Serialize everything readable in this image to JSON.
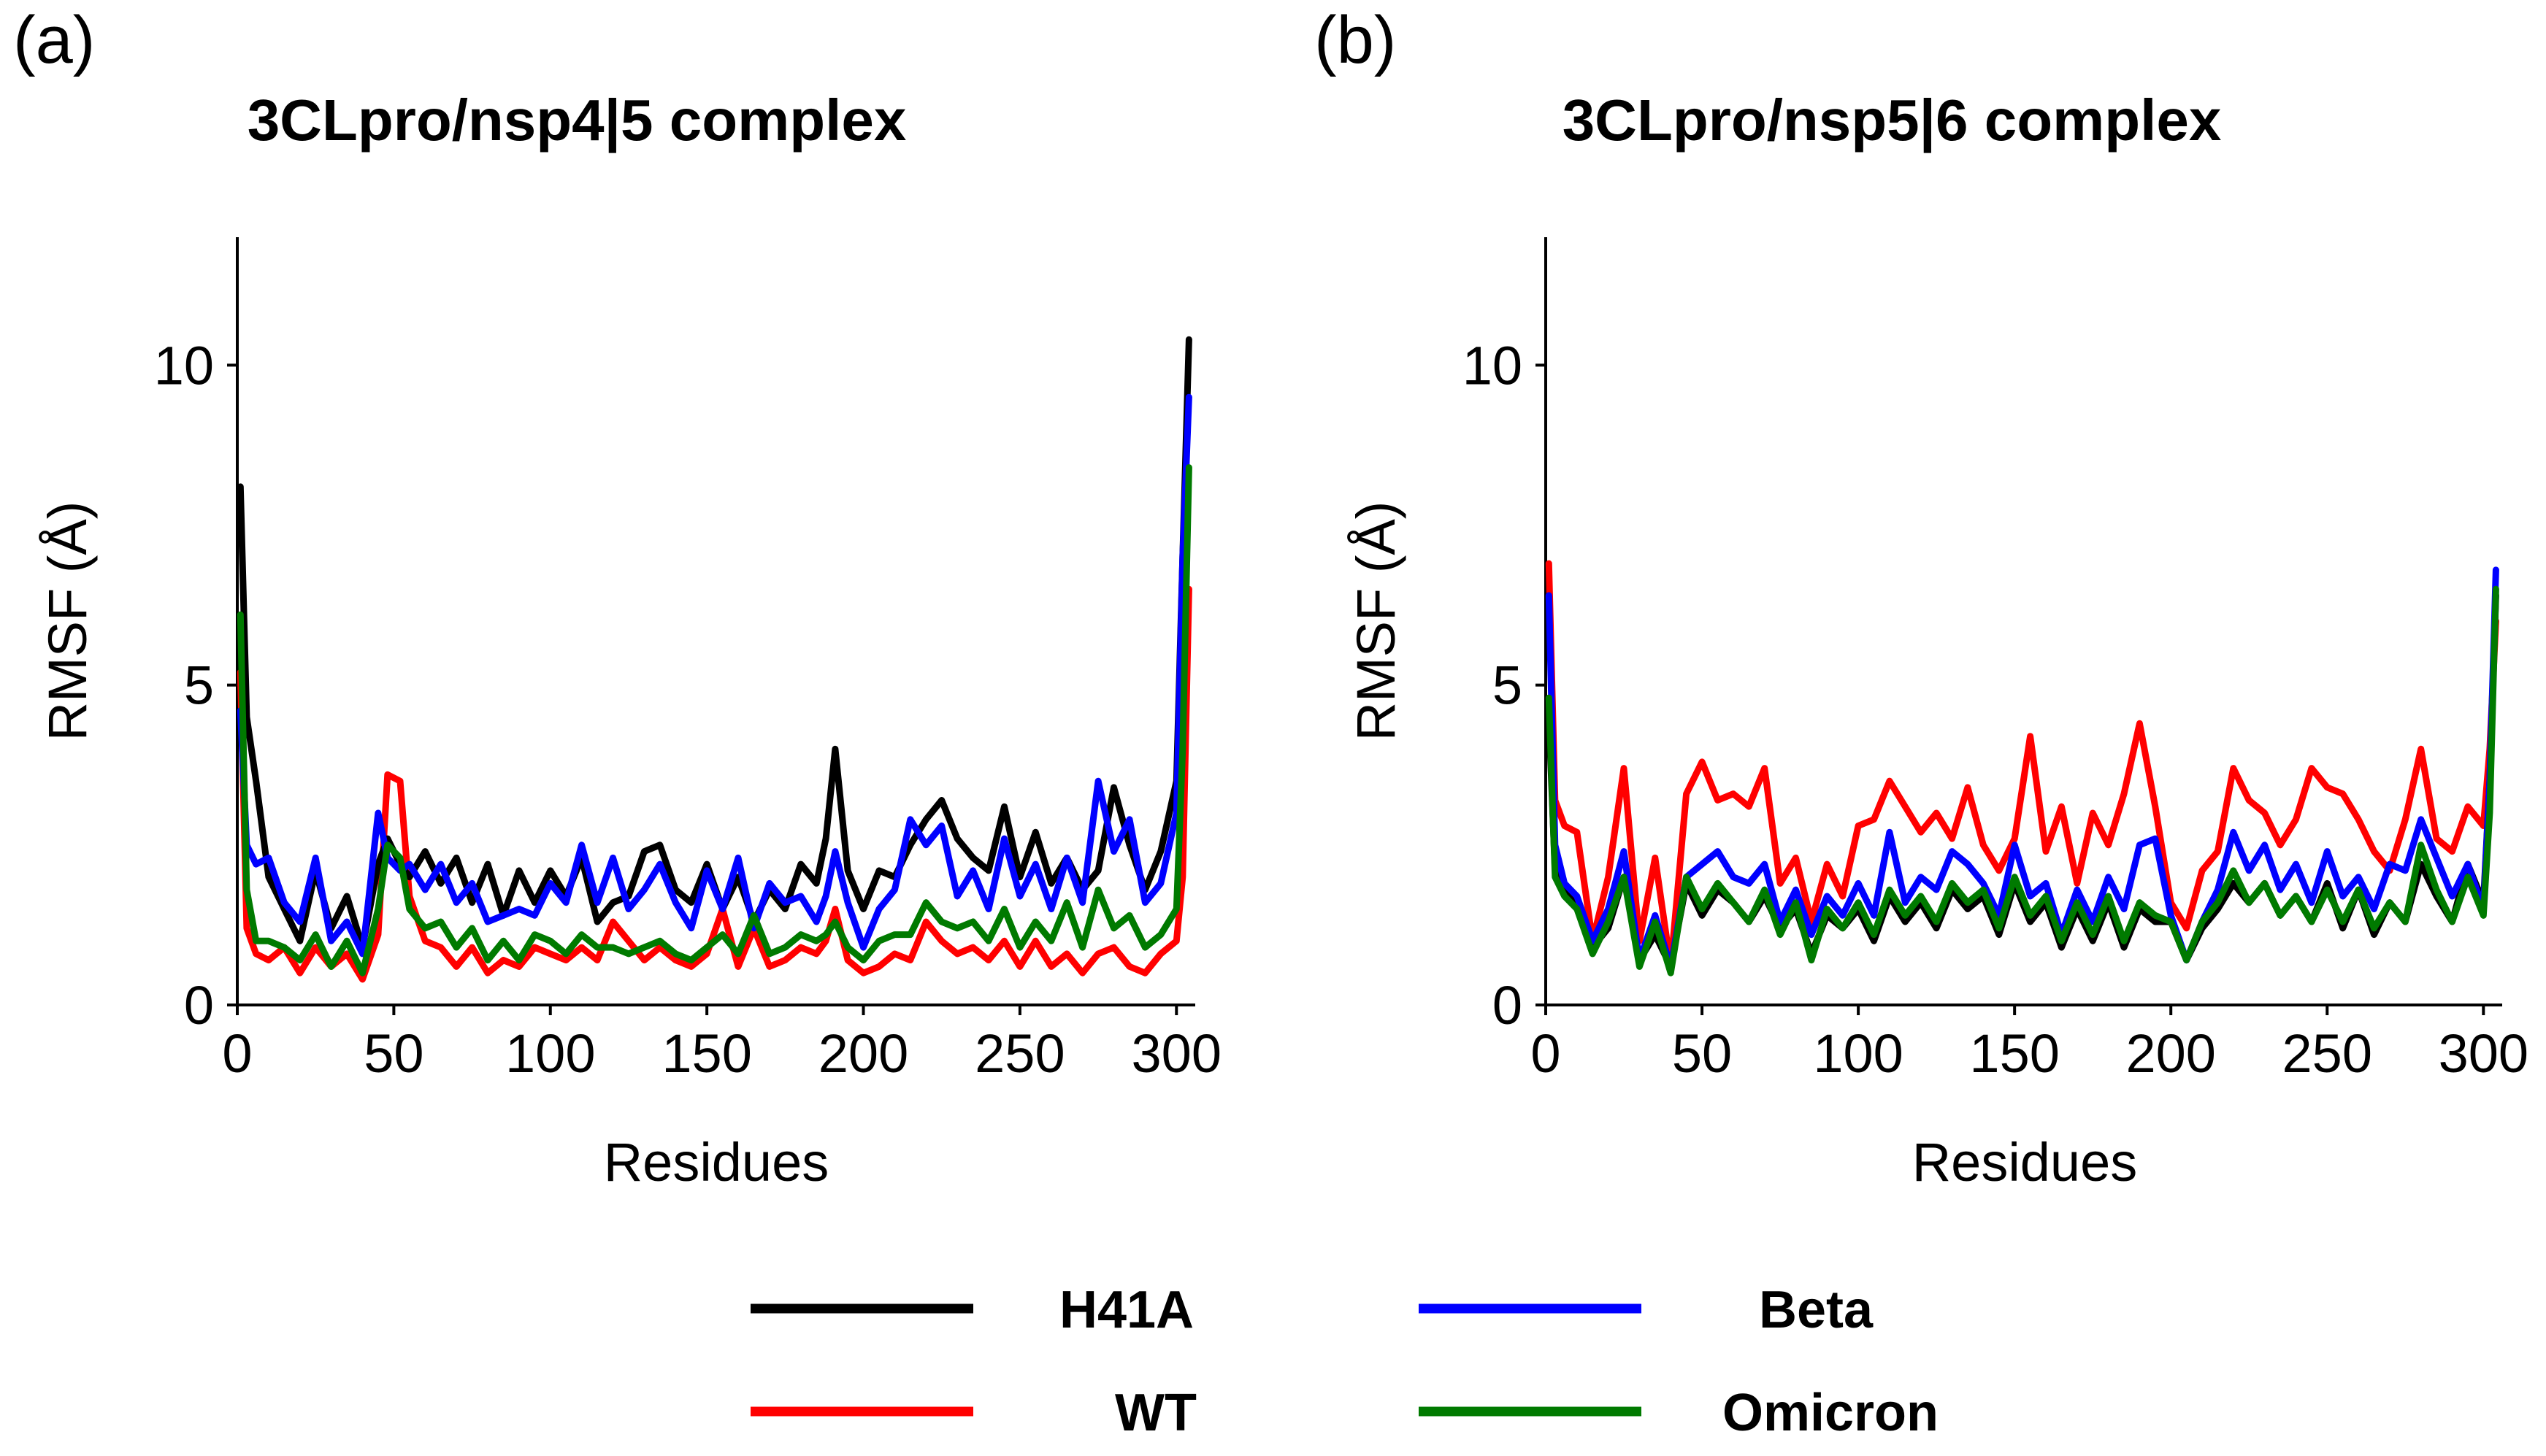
{
  "chart_data": [
    {
      "type": "line",
      "panel_label": "(a)",
      "title": "3CLpro/nsp4|5 complex",
      "xlabel": "Residues",
      "ylabel": "RMSF (Å)",
      "xlim": [
        0,
        306
      ],
      "ylim": [
        0,
        12
      ],
      "xticks": [
        0,
        50,
        100,
        150,
        200,
        250,
        300
      ],
      "yticks": [
        0,
        5,
        10
      ],
      "grid": false,
      "series": [
        {
          "name": "H41A",
          "color": "#000000",
          "x": [
            1,
            3,
            6,
            10,
            15,
            20,
            25,
            30,
            35,
            40,
            45,
            48,
            52,
            55,
            60,
            65,
            70,
            75,
            80,
            85,
            90,
            95,
            100,
            105,
            110,
            115,
            120,
            125,
            130,
            135,
            140,
            145,
            150,
            155,
            160,
            165,
            170,
            175,
            180,
            185,
            188,
            191,
            195,
            200,
            205,
            210,
            215,
            220,
            225,
            230,
            235,
            240,
            245,
            250,
            255,
            260,
            265,
            270,
            275,
            280,
            285,
            290,
            295,
            300,
            302,
            304
          ],
          "y": [
            8.1,
            4.5,
            3.5,
            2.0,
            1.5,
            1.0,
            2.1,
            1.2,
            1.7,
            0.9,
            2.2,
            2.6,
            2.2,
            2.0,
            2.4,
            1.9,
            2.3,
            1.6,
            2.2,
            1.4,
            2.1,
            1.6,
            2.1,
            1.7,
            2.3,
            1.3,
            1.6,
            1.7,
            2.4,
            2.5,
            1.8,
            1.6,
            2.2,
            1.5,
            2.0,
            1.3,
            1.8,
            1.5,
            2.2,
            1.9,
            2.6,
            4.0,
            2.1,
            1.5,
            2.1,
            2.0,
            2.5,
            2.9,
            3.2,
            2.6,
            2.3,
            2.1,
            3.1,
            2.0,
            2.7,
            1.9,
            2.3,
            1.8,
            2.1,
            3.4,
            2.5,
            1.8,
            2.4,
            3.5,
            7.0,
            10.4
          ]
        },
        {
          "name": "WT",
          "color": "#ff0000",
          "x": [
            1,
            3,
            6,
            10,
            15,
            20,
            25,
            30,
            35,
            40,
            45,
            48,
            52,
            55,
            60,
            65,
            70,
            75,
            80,
            85,
            90,
            95,
            100,
            105,
            110,
            115,
            120,
            125,
            130,
            135,
            140,
            145,
            150,
            155,
            160,
            165,
            170,
            175,
            180,
            185,
            188,
            191,
            195,
            200,
            205,
            210,
            215,
            220,
            225,
            230,
            235,
            240,
            245,
            250,
            255,
            260,
            265,
            270,
            275,
            280,
            285,
            290,
            295,
            300,
            302,
            304
          ],
          "y": [
            5.2,
            1.2,
            0.8,
            0.7,
            0.9,
            0.5,
            0.9,
            0.6,
            0.8,
            0.4,
            1.1,
            3.6,
            3.5,
            1.7,
            1.0,
            0.9,
            0.6,
            0.9,
            0.5,
            0.7,
            0.6,
            0.9,
            0.8,
            0.7,
            0.9,
            0.7,
            1.3,
            1.0,
            0.7,
            0.9,
            0.7,
            0.6,
            0.8,
            1.5,
            0.6,
            1.2,
            0.6,
            0.7,
            0.9,
            0.8,
            1.0,
            1.5,
            0.7,
            0.5,
            0.6,
            0.8,
            0.7,
            1.3,
            1.0,
            0.8,
            0.9,
            0.7,
            1.0,
            0.6,
            1.0,
            0.6,
            0.8,
            0.5,
            0.8,
            0.9,
            0.6,
            0.5,
            0.8,
            1.0,
            2.0,
            6.5
          ]
        },
        {
          "name": "Beta",
          "color": "#0000ff",
          "x": [
            1,
            3,
            6,
            10,
            15,
            20,
            25,
            30,
            35,
            40,
            45,
            48,
            52,
            55,
            60,
            65,
            70,
            75,
            80,
            85,
            90,
            95,
            100,
            105,
            110,
            115,
            120,
            125,
            130,
            135,
            140,
            145,
            150,
            155,
            160,
            165,
            170,
            175,
            180,
            185,
            188,
            191,
            195,
            200,
            205,
            210,
            215,
            220,
            225,
            230,
            235,
            240,
            245,
            250,
            255,
            260,
            265,
            270,
            275,
            280,
            285,
            290,
            295,
            300,
            302,
            304
          ],
          "y": [
            4.6,
            2.5,
            2.2,
            2.3,
            1.6,
            1.3,
            2.3,
            1.0,
            1.3,
            0.8,
            3.0,
            2.3,
            2.1,
            2.2,
            1.8,
            2.2,
            1.6,
            1.9,
            1.3,
            1.4,
            1.5,
            1.4,
            1.9,
            1.6,
            2.5,
            1.6,
            2.3,
            1.5,
            1.8,
            2.2,
            1.6,
            1.2,
            2.1,
            1.5,
            2.3,
            1.2,
            1.9,
            1.6,
            1.7,
            1.3,
            1.7,
            2.4,
            1.6,
            0.9,
            1.5,
            1.8,
            2.9,
            2.5,
            2.8,
            1.7,
            2.1,
            1.5,
            2.6,
            1.7,
            2.2,
            1.5,
            2.3,
            1.6,
            3.5,
            2.4,
            2.9,
            1.6,
            1.9,
            3.0,
            7.0,
            9.5
          ]
        },
        {
          "name": "Omicron",
          "color": "#007a00",
          "x": [
            1,
            3,
            6,
            10,
            15,
            20,
            25,
            30,
            35,
            40,
            45,
            48,
            52,
            55,
            60,
            65,
            70,
            75,
            80,
            85,
            90,
            95,
            100,
            105,
            110,
            115,
            120,
            125,
            130,
            135,
            140,
            145,
            150,
            155,
            160,
            165,
            170,
            175,
            180,
            185,
            188,
            191,
            195,
            200,
            205,
            210,
            215,
            220,
            225,
            230,
            235,
            240,
            245,
            250,
            255,
            260,
            265,
            270,
            275,
            280,
            285,
            290,
            295,
            300,
            302,
            304
          ],
          "y": [
            6.1,
            1.8,
            1.0,
            1.0,
            0.9,
            0.7,
            1.1,
            0.6,
            1.0,
            0.5,
            1.5,
            2.5,
            2.3,
            1.5,
            1.2,
            1.3,
            0.9,
            1.2,
            0.7,
            1.0,
            0.7,
            1.1,
            1.0,
            0.8,
            1.1,
            0.9,
            0.9,
            0.8,
            0.9,
            1.0,
            0.8,
            0.7,
            0.9,
            1.1,
            0.8,
            1.4,
            0.8,
            0.9,
            1.1,
            1.0,
            1.1,
            1.3,
            0.9,
            0.7,
            1.0,
            1.1,
            1.1,
            1.6,
            1.3,
            1.2,
            1.3,
            1.0,
            1.5,
            0.9,
            1.3,
            1.0,
            1.6,
            0.9,
            1.8,
            1.2,
            1.4,
            0.9,
            1.1,
            1.5,
            4.0,
            8.4
          ]
        }
      ]
    },
    {
      "type": "line",
      "panel_label": "(b)",
      "title": "3CLpro/nsp5|6 complex",
      "xlabel": "Residues",
      "ylabel": "RMSF (Å)",
      "xlim": [
        0,
        306
      ],
      "ylim": [
        0,
        12
      ],
      "xticks": [
        0,
        50,
        100,
        150,
        200,
        250,
        300
      ],
      "yticks": [
        0,
        5,
        10
      ],
      "grid": false,
      "series": [
        {
          "name": "H41A",
          "color": "#000000",
          "x": [
            1,
            3,
            6,
            10,
            15,
            20,
            25,
            30,
            35,
            40,
            45,
            50,
            55,
            60,
            65,
            70,
            75,
            80,
            85,
            90,
            95,
            100,
            105,
            110,
            115,
            120,
            125,
            130,
            135,
            140,
            145,
            150,
            155,
            160,
            165,
            170,
            175,
            180,
            185,
            190,
            195,
            200,
            205,
            210,
            215,
            220,
            225,
            230,
            235,
            240,
            245,
            250,
            255,
            260,
            265,
            270,
            275,
            280,
            285,
            290,
            295,
            300,
            302,
            304
          ],
          "y": [
            4.5,
            2.1,
            1.8,
            1.6,
            0.9,
            1.2,
            2.0,
            0.7,
            1.1,
            0.6,
            1.9,
            1.4,
            1.8,
            1.6,
            1.3,
            1.7,
            1.2,
            1.5,
            0.8,
            1.4,
            1.2,
            1.5,
            1.0,
            1.7,
            1.3,
            1.6,
            1.2,
            1.8,
            1.5,
            1.7,
            1.1,
            1.9,
            1.3,
            1.6,
            0.9,
            1.5,
            1.0,
            1.6,
            0.9,
            1.5,
            1.3,
            1.3,
            0.7,
            1.2,
            1.5,
            1.9,
            1.6,
            1.9,
            1.4,
            1.7,
            1.3,
            1.9,
            1.2,
            1.8,
            1.1,
            1.6,
            1.3,
            2.2,
            1.7,
            1.3,
            2.2,
            1.6,
            3.5,
            6.4
          ]
        },
        {
          "name": "WT",
          "color": "#ff0000",
          "x": [
            1,
            3,
            6,
            10,
            15,
            20,
            25,
            30,
            35,
            40,
            45,
            50,
            55,
            60,
            65,
            70,
            75,
            80,
            85,
            90,
            95,
            100,
            105,
            110,
            115,
            120,
            125,
            130,
            135,
            140,
            145,
            150,
            155,
            160,
            165,
            170,
            175,
            180,
            185,
            190,
            195,
            200,
            205,
            210,
            215,
            220,
            225,
            230,
            235,
            240,
            245,
            250,
            255,
            260,
            265,
            270,
            275,
            280,
            285,
            290,
            295,
            300,
            302,
            304
          ],
          "y": [
            6.9,
            3.2,
            2.8,
            2.7,
            1.0,
            2.0,
            3.7,
            1.0,
            2.3,
            0.6,
            3.3,
            3.8,
            3.2,
            3.3,
            3.1,
            3.7,
            1.9,
            2.3,
            1.3,
            2.2,
            1.7,
            2.8,
            2.9,
            3.5,
            3.1,
            2.7,
            3.0,
            2.6,
            3.4,
            2.5,
            2.1,
            2.6,
            4.2,
            2.4,
            3.1,
            1.9,
            3.0,
            2.5,
            3.3,
            4.4,
            3.1,
            1.6,
            1.2,
            2.1,
            2.4,
            3.7,
            3.2,
            3.0,
            2.5,
            2.9,
            3.7,
            3.4,
            3.3,
            2.9,
            2.4,
            2.1,
            2.9,
            4.0,
            2.6,
            2.4,
            3.1,
            2.8,
            4.0,
            6.0
          ]
        },
        {
          "name": "Beta",
          "color": "#0000ff",
          "x": [
            1,
            3,
            6,
            10,
            15,
            20,
            25,
            30,
            35,
            40,
            45,
            50,
            55,
            60,
            65,
            70,
            75,
            80,
            85,
            90,
            95,
            100,
            105,
            110,
            115,
            120,
            125,
            130,
            135,
            140,
            145,
            150,
            155,
            160,
            165,
            170,
            175,
            180,
            185,
            190,
            195,
            200,
            205,
            210,
            215,
            220,
            225,
            230,
            235,
            240,
            245,
            250,
            255,
            260,
            265,
            270,
            275,
            280,
            285,
            290,
            295,
            300,
            302,
            304
          ],
          "y": [
            6.4,
            2.5,
            1.9,
            1.7,
            1.0,
            1.5,
            2.4,
            0.7,
            1.4,
            0.6,
            2.0,
            2.2,
            2.4,
            2.0,
            1.9,
            2.2,
            1.3,
            1.8,
            1.1,
            1.7,
            1.4,
            1.9,
            1.4,
            2.7,
            1.6,
            2.0,
            1.8,
            2.4,
            2.2,
            1.9,
            1.4,
            2.5,
            1.7,
            1.9,
            1.1,
            1.8,
            1.3,
            2.0,
            1.5,
            2.5,
            2.6,
            1.4,
            0.7,
            1.3,
            1.8,
            2.7,
            2.1,
            2.5,
            1.8,
            2.2,
            1.6,
            2.4,
            1.7,
            2.0,
            1.5,
            2.2,
            2.1,
            2.9,
            2.3,
            1.7,
            2.2,
            1.5,
            3.5,
            6.8
          ]
        },
        {
          "name": "Omicron",
          "color": "#007a00",
          "x": [
            1,
            3,
            6,
            10,
            15,
            20,
            25,
            30,
            35,
            40,
            45,
            50,
            55,
            60,
            65,
            70,
            75,
            80,
            85,
            90,
            95,
            100,
            105,
            110,
            115,
            120,
            125,
            130,
            135,
            140,
            145,
            150,
            155,
            160,
            165,
            170,
            175,
            180,
            185,
            190,
            195,
            200,
            205,
            210,
            215,
            220,
            225,
            230,
            235,
            240,
            245,
            250,
            255,
            260,
            265,
            270,
            275,
            280,
            285,
            290,
            295,
            300,
            302,
            304
          ],
          "y": [
            4.8,
            2.0,
            1.7,
            1.5,
            0.8,
            1.3,
            2.0,
            0.6,
            1.3,
            0.5,
            2.0,
            1.5,
            1.9,
            1.6,
            1.3,
            1.8,
            1.1,
            1.6,
            0.7,
            1.5,
            1.2,
            1.6,
            1.1,
            1.8,
            1.4,
            1.7,
            1.3,
            1.9,
            1.6,
            1.8,
            1.2,
            2.0,
            1.4,
            1.7,
            1.0,
            1.6,
            1.1,
            1.7,
            1.0,
            1.6,
            1.4,
            1.3,
            0.7,
            1.3,
            1.6,
            2.1,
            1.6,
            1.9,
            1.4,
            1.7,
            1.3,
            1.8,
            1.3,
            1.8,
            1.2,
            1.6,
            1.3,
            2.5,
            1.8,
            1.3,
            2.0,
            1.4,
            3.0,
            6.5
          ]
        }
      ]
    }
  ],
  "legend": {
    "placement": "bottom-center",
    "items": [
      {
        "name": "H41A",
        "color": "#000000"
      },
      {
        "name": "Beta",
        "color": "#0000ff"
      },
      {
        "name": "WT",
        "color": "#ff0000"
      },
      {
        "name": "Omicron",
        "color": "#007a00"
      }
    ]
  }
}
